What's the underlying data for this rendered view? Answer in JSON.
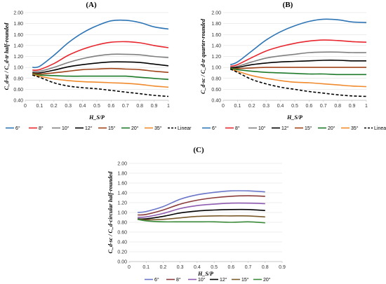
{
  "chart_data": [
    {
      "type": "line",
      "title": "(A)",
      "xlabel": "H_S/P",
      "ylabel": "C_d-sc / C_d-tr half-rounded",
      "xlim": [
        0,
        1
      ],
      "ylim": [
        0.4,
        2.0
      ],
      "xticks": [
        "0",
        "0.1",
        "0.2",
        "0.3",
        "0.4",
        "0.5",
        "0.6",
        "0.7",
        "0.8",
        "0.9",
        "1"
      ],
      "yticks": [
        "0.40",
        "0.60",
        "0.80",
        "1.00",
        "1.20",
        "1.40",
        "1.60",
        "1.80",
        "2.00"
      ],
      "grid": "horizontal",
      "legend_position": "bottom",
      "x": [
        0.05,
        0.1,
        0.2,
        0.3,
        0.4,
        0.5,
        0.6,
        0.7,
        0.8,
        0.9,
        1.0
      ],
      "series": [
        {
          "name": "6°",
          "color": "#2e75b6",
          "dash": "solid",
          "values": [
            1.0,
            1.02,
            1.22,
            1.45,
            1.63,
            1.76,
            1.85,
            1.86,
            1.82,
            1.74,
            1.7
          ]
        },
        {
          "name": "8°",
          "color": "#e8262e",
          "dash": "solid",
          "values": [
            0.95,
            0.96,
            1.07,
            1.22,
            1.33,
            1.41,
            1.46,
            1.47,
            1.45,
            1.4,
            1.36
          ]
        },
        {
          "name": "10°",
          "color": "#808080",
          "dash": "solid",
          "values": [
            0.92,
            0.93,
            1.0,
            1.09,
            1.16,
            1.21,
            1.24,
            1.24,
            1.23,
            1.2,
            1.18
          ]
        },
        {
          "name": "12°",
          "color": "#000000",
          "dash": "solid",
          "values": [
            0.9,
            0.9,
            0.95,
            1.01,
            1.05,
            1.08,
            1.1,
            1.1,
            1.09,
            1.06,
            1.03
          ]
        },
        {
          "name": "15°",
          "color": "#a0441a",
          "dash": "solid",
          "values": [
            0.89,
            0.88,
            0.9,
            0.93,
            0.96,
            0.97,
            0.98,
            0.97,
            0.96,
            0.93,
            0.91
          ]
        },
        {
          "name": "20°",
          "color": "#1e7b2a",
          "dash": "solid",
          "values": [
            0.88,
            0.86,
            0.85,
            0.84,
            0.84,
            0.84,
            0.84,
            0.84,
            0.82,
            0.8,
            0.78
          ]
        },
        {
          "name": "35°",
          "color": "#f08a2c",
          "dash": "solid",
          "values": [
            0.87,
            0.84,
            0.79,
            0.76,
            0.74,
            0.73,
            0.72,
            0.71,
            0.69,
            0.66,
            0.64
          ]
        },
        {
          "name": "Linear",
          "color": "#000000",
          "dash": "dashed",
          "values": [
            0.86,
            0.82,
            0.72,
            0.66,
            0.63,
            0.61,
            0.58,
            0.55,
            0.52,
            0.49,
            0.47
          ]
        }
      ]
    },
    {
      "type": "line",
      "title": "(B)",
      "xlabel": "H_S/P",
      "ylabel": "C_d-sc / C_d-tr quarter-rounded",
      "xlim": [
        0,
        1
      ],
      "ylim": [
        0.4,
        2.0
      ],
      "xticks": [
        "0",
        "0.1",
        "0.2",
        "0.3",
        "0.4",
        "0.5",
        "0.6",
        "0.7",
        "0.8",
        "0.9",
        "1"
      ],
      "yticks": [
        "0.40",
        "0.60",
        "0.80",
        "1.00",
        "1.20",
        "1.40",
        "1.60",
        "1.80",
        "2.00"
      ],
      "grid": "horizontal",
      "legend_position": "bottom",
      "x": [
        0.05,
        0.1,
        0.2,
        0.3,
        0.4,
        0.5,
        0.6,
        0.7,
        0.8,
        0.9,
        1.0
      ],
      "series": [
        {
          "name": "6°",
          "color": "#2e75b6",
          "dash": "solid",
          "values": [
            1.05,
            1.1,
            1.3,
            1.5,
            1.65,
            1.76,
            1.84,
            1.88,
            1.87,
            1.83,
            1.82
          ]
        },
        {
          "name": "8°",
          "color": "#e8262e",
          "dash": "solid",
          "values": [
            1.02,
            1.05,
            1.18,
            1.3,
            1.38,
            1.44,
            1.48,
            1.5,
            1.49,
            1.47,
            1.46
          ]
        },
        {
          "name": "10°",
          "color": "#808080",
          "dash": "solid",
          "values": [
            1.0,
            1.02,
            1.1,
            1.17,
            1.21,
            1.24,
            1.27,
            1.28,
            1.28,
            1.27,
            1.27
          ]
        },
        {
          "name": "12°",
          "color": "#000000",
          "dash": "solid",
          "values": [
            0.99,
            1.0,
            1.05,
            1.08,
            1.1,
            1.11,
            1.12,
            1.13,
            1.13,
            1.12,
            1.12
          ]
        },
        {
          "name": "15°",
          "color": "#a0441a",
          "dash": "solid",
          "values": [
            0.98,
            0.98,
            0.99,
            1.0,
            1.0,
            1.0,
            1.0,
            1.0,
            1.0,
            1.0,
            1.0
          ]
        },
        {
          "name": "20°",
          "color": "#1e7b2a",
          "dash": "solid",
          "values": [
            0.98,
            0.96,
            0.93,
            0.91,
            0.9,
            0.89,
            0.88,
            0.88,
            0.87,
            0.87,
            0.87
          ]
        },
        {
          "name": "35°",
          "color": "#f08a2c",
          "dash": "solid",
          "values": [
            0.97,
            0.93,
            0.85,
            0.8,
            0.76,
            0.73,
            0.72,
            0.7,
            0.68,
            0.66,
            0.65
          ]
        },
        {
          "name": "Linear",
          "color": "#000000",
          "dash": "dashed",
          "values": [
            0.97,
            0.91,
            0.78,
            0.7,
            0.64,
            0.6,
            0.56,
            0.53,
            0.5,
            0.48,
            0.47
          ]
        }
      ]
    },
    {
      "type": "line",
      "title": "(C)",
      "xlabel": "H_S/P",
      "ylabel": "C_d-sc / C_d-circular half-rounded",
      "xlim": [
        0,
        0.9
      ],
      "ylim": [
        0.0,
        2.0
      ],
      "xticks": [
        "0",
        "0.1",
        "0.2",
        "0.3",
        "0.4",
        "0.5",
        "0.6",
        "0.7",
        "0.8",
        "0.9"
      ],
      "yticks": [
        "0.00",
        "0.20",
        "0.40",
        "0.60",
        "0.80",
        "1.00",
        "1.20",
        "1.40",
        "1.60",
        "1.80",
        "2.00"
      ],
      "grid": "horizontal",
      "legend_position": "bottom",
      "x": [
        0.05,
        0.1,
        0.2,
        0.3,
        0.4,
        0.5,
        0.6,
        0.7,
        0.8
      ],
      "series": [
        {
          "name": "6°",
          "color": "#6a76c8",
          "dash": "solid",
          "values": [
            1.0,
            1.02,
            1.12,
            1.27,
            1.36,
            1.41,
            1.44,
            1.44,
            1.42
          ]
        },
        {
          "name": "8°",
          "color": "#8b3a3a",
          "dash": "solid",
          "values": [
            0.95,
            0.96,
            1.05,
            1.17,
            1.25,
            1.3,
            1.33,
            1.34,
            1.33
          ]
        },
        {
          "name": "10°",
          "color": "#8e5bb0",
          "dash": "solid",
          "values": [
            0.9,
            0.91,
            0.98,
            1.08,
            1.14,
            1.17,
            1.19,
            1.19,
            1.18
          ]
        },
        {
          "name": "12°",
          "color": "#000000",
          "dash": "solid",
          "values": [
            0.87,
            0.87,
            0.92,
            0.99,
            1.03,
            1.05,
            1.06,
            1.06,
            1.04
          ]
        },
        {
          "name": "15°",
          "color": "#7a5a2a",
          "dash": "solid",
          "values": [
            0.86,
            0.85,
            0.86,
            0.89,
            0.92,
            0.93,
            0.93,
            0.93,
            0.91
          ]
        },
        {
          "name": "20°",
          "color": "#3a8a3a",
          "dash": "solid",
          "values": [
            0.86,
            0.83,
            0.81,
            0.81,
            0.81,
            0.81,
            0.8,
            0.81,
            0.79
          ]
        }
      ]
    }
  ]
}
